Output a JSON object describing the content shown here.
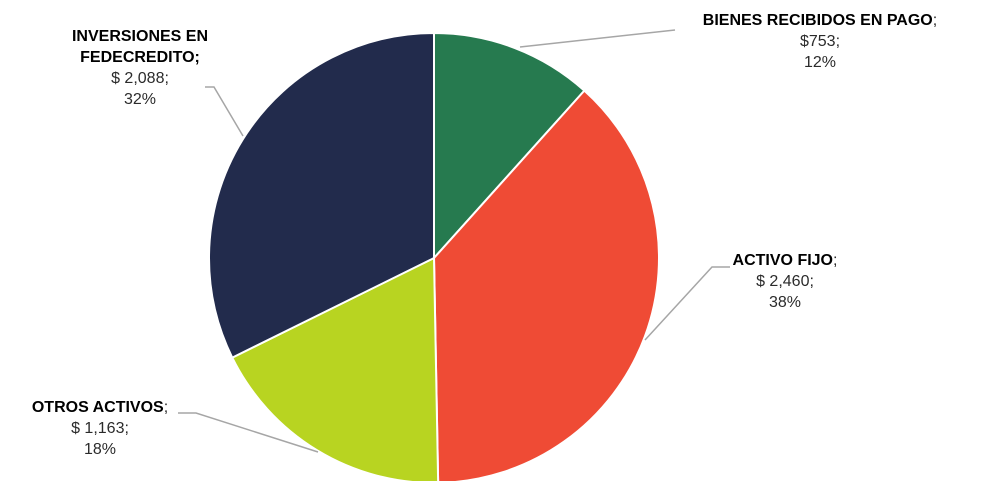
{
  "chart_data": {
    "type": "pie",
    "title": "",
    "start_angle_deg": 0,
    "direction": "clockwise",
    "slices": [
      {
        "name": "BIENES RECIBIDOS EN PAGO",
        "value": 753,
        "value_label": "$753",
        "percent_label": "12%",
        "color": "#267a4f"
      },
      {
        "name": "ACTIVO FIJO",
        "value": 2460,
        "value_label": "$ 2,460",
        "percent_label": "38%",
        "color": "#ef4b35"
      },
      {
        "name": "OTROS ACTIVOS",
        "value": 1163,
        "value_label": "$ 1,163",
        "percent_label": "18%",
        "color": "#b8d421"
      },
      {
        "name": "INVERSIONES EN FEDECREDITO",
        "value": 2088,
        "value_label": "$ 2,088",
        "percent_label": "32%",
        "color": "#222b4c"
      }
    ],
    "separator": ";",
    "leader_line_color": "#a6a6a6"
  }
}
